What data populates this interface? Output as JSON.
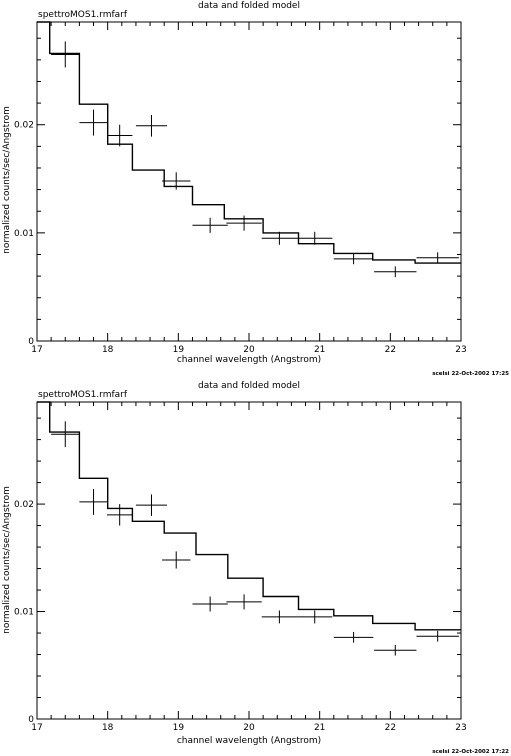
{
  "chart_data": [
    {
      "type": "line",
      "title": "data and folded model",
      "plot_label": "spettroMOS1.rmfarf",
      "xlabel": "channel wavelength (Angstrom)",
      "ylabel": "normalized counts/sec/Angstrom",
      "xlim": [
        17,
        23
      ],
      "ylim": [
        0,
        0.0295
      ],
      "x_ticks": [
        17,
        18,
        19,
        20,
        21,
        22,
        23
      ],
      "x_tick_labels": [
        "17",
        "18",
        "19",
        "20",
        "21",
        "22",
        "23"
      ],
      "y_ticks": [
        0,
        0.01,
        0.02
      ],
      "y_tick_labels": [
        "0",
        "0.01",
        "0.02"
      ],
      "timestamp": "scelsi 22-Oct-2002 17:25",
      "data": [
        {
          "x": 17.4,
          "xerr": 0.2,
          "y": 0.0265,
          "yerr": 0.0012
        },
        {
          "x": 17.8,
          "xerr": 0.2,
          "y": 0.0202,
          "yerr": 0.0012
        },
        {
          "x": 18.17,
          "xerr": 0.18,
          "y": 0.019,
          "yerr": 0.001
        },
        {
          "x": 18.62,
          "xerr": 0.22,
          "y": 0.0199,
          "yerr": 0.001
        },
        {
          "x": 18.97,
          "xerr": 0.2,
          "y": 0.0148,
          "yerr": 0.0008
        },
        {
          "x": 19.45,
          "xerr": 0.25,
          "y": 0.0107,
          "yerr": 0.0007
        },
        {
          "x": 19.93,
          "xerr": 0.25,
          "y": 0.0109,
          "yerr": 0.0007
        },
        {
          "x": 20.43,
          "xerr": 0.25,
          "y": 0.0095,
          "yerr": 0.0006
        },
        {
          "x": 20.93,
          "xerr": 0.25,
          "y": 0.0095,
          "yerr": 0.0006
        },
        {
          "x": 21.48,
          "xerr": 0.28,
          "y": 0.0076,
          "yerr": 0.0005
        },
        {
          "x": 22.07,
          "xerr": 0.3,
          "y": 0.0064,
          "yerr": 0.0005
        },
        {
          "x": 22.67,
          "xerr": 0.3,
          "y": 0.0077,
          "yerr": 0.0005
        }
      ],
      "model": {
        "edges": [
          17.0,
          17.18,
          17.6,
          18.0,
          18.35,
          18.8,
          19.2,
          19.65,
          20.2,
          20.7,
          21.2,
          21.75,
          22.35,
          23.0
        ],
        "values": [
          0.03,
          0.0266,
          0.0219,
          0.0182,
          0.0158,
          0.0143,
          0.0126,
          0.0113,
          0.01,
          0.009,
          0.0081,
          0.0075,
          0.0072
        ]
      }
    },
    {
      "type": "line",
      "title": "data and folded model",
      "plot_label": "spettroMOS1.rmfarf",
      "xlabel": "channel wavelength (Angstrom)",
      "ylabel": "normalized counts/sec/Angstrom",
      "xlim": [
        17,
        23
      ],
      "ylim": [
        0,
        0.0295
      ],
      "x_ticks": [
        17,
        18,
        19,
        20,
        21,
        22,
        23
      ],
      "x_tick_labels": [
        "17",
        "18",
        "19",
        "20",
        "21",
        "22",
        "23"
      ],
      "y_ticks": [
        0,
        0.01,
        0.02
      ],
      "y_tick_labels": [
        "0",
        "0.01",
        "0.02"
      ],
      "timestamp": "scelsi 22-Oct-2002 17:22",
      "data": [
        {
          "x": 17.4,
          "xerr": 0.2,
          "y": 0.0265,
          "yerr": 0.0012
        },
        {
          "x": 17.8,
          "xerr": 0.2,
          "y": 0.0202,
          "yerr": 0.0012
        },
        {
          "x": 18.17,
          "xerr": 0.18,
          "y": 0.019,
          "yerr": 0.001
        },
        {
          "x": 18.62,
          "xerr": 0.22,
          "y": 0.0199,
          "yerr": 0.001
        },
        {
          "x": 18.97,
          "xerr": 0.2,
          "y": 0.0148,
          "yerr": 0.0008
        },
        {
          "x": 19.45,
          "xerr": 0.25,
          "y": 0.0107,
          "yerr": 0.0007
        },
        {
          "x": 19.93,
          "xerr": 0.25,
          "y": 0.0109,
          "yerr": 0.0007
        },
        {
          "x": 20.43,
          "xerr": 0.25,
          "y": 0.0095,
          "yerr": 0.0006
        },
        {
          "x": 20.93,
          "xerr": 0.25,
          "y": 0.0095,
          "yerr": 0.0006
        },
        {
          "x": 21.48,
          "xerr": 0.28,
          "y": 0.0076,
          "yerr": 0.0005
        },
        {
          "x": 22.07,
          "xerr": 0.3,
          "y": 0.0064,
          "yerr": 0.0005
        },
        {
          "x": 22.67,
          "xerr": 0.3,
          "y": 0.0077,
          "yerr": 0.0005
        }
      ],
      "model": {
        "edges": [
          17.0,
          17.18,
          17.6,
          18.0,
          18.35,
          18.8,
          19.25,
          19.7,
          20.2,
          20.7,
          21.2,
          21.75,
          22.35,
          23.0
        ],
        "values": [
          0.03,
          0.0267,
          0.0224,
          0.0196,
          0.0184,
          0.0173,
          0.0153,
          0.0131,
          0.0114,
          0.0102,
          0.0096,
          0.0089,
          0.0083
        ]
      }
    }
  ]
}
